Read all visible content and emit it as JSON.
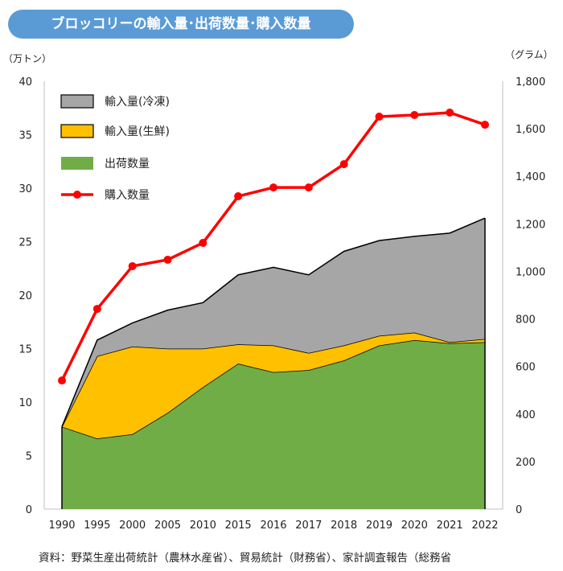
{
  "title": "ブロッコリーの輸入量･出荷数量･購入数量",
  "footer": "資料：野菜生産出荷統計（農林水産省）、貿易統計（財務省）、家計調査報告（総務省",
  "chart_data": {
    "type": "area",
    "title": "ブロッコリーの輸入量･出荷数量･購入数量",
    "categories": [
      "1990",
      "1995",
      "2000",
      "2005",
      "2010",
      "2015",
      "2016",
      "2017",
      "2018",
      "2019",
      "2020",
      "2021",
      "2022"
    ],
    "left_axis": {
      "label": "（万トン）",
      "range": [
        0,
        40
      ],
      "ticks": [
        0,
        5,
        10,
        15,
        20,
        25,
        30,
        35,
        40
      ],
      "tick_labels": [
        "0",
        "5",
        "10",
        "15",
        "20",
        "25",
        "30",
        "35",
        "40"
      ]
    },
    "right_axis": {
      "label": "（グラム）",
      "range": [
        0,
        1800
      ],
      "ticks": [
        0,
        200,
        400,
        600,
        800,
        1000,
        1200,
        1400,
        1600,
        1800
      ],
      "tick_labels": [
        "0",
        "200",
        "400",
        "600",
        "800",
        "1,000",
        "1,200",
        "1,400",
        "1,600",
        "1,800"
      ]
    },
    "legend_position": "top-left",
    "series": [
      {
        "name": "輸入量(冷凍)",
        "kind": "stacked-area",
        "axis": "left",
        "color": "#a6a6a6",
        "values": [
          0,
          1.5,
          2.2,
          3.6,
          4.3,
          6.5,
          7.3,
          7.3,
          8.8,
          8.9,
          9.0,
          10.2,
          11.3
        ]
      },
      {
        "name": "輸入量(生鮮)",
        "kind": "stacked-area",
        "axis": "left",
        "color": "#ffc000",
        "values": [
          0,
          7.7,
          8.2,
          6.0,
          3.6,
          1.8,
          2.5,
          1.6,
          1.4,
          0.9,
          0.7,
          0.1,
          0.3
        ]
      },
      {
        "name": "出荷数量",
        "kind": "stacked-area",
        "axis": "left",
        "color": "#70ad47",
        "values": [
          7.7,
          6.6,
          7.0,
          9.0,
          11.4,
          13.6,
          12.8,
          13.0,
          13.9,
          15.3,
          15.8,
          15.5,
          15.6
        ]
      },
      {
        "name": "購入数量",
        "kind": "line",
        "axis": "right",
        "color": "#ff0000",
        "values": [
          541,
          842,
          1022,
          1049,
          1120,
          1316,
          1353,
          1353,
          1451,
          1651,
          1658,
          1668,
          1617
        ]
      }
    ]
  }
}
